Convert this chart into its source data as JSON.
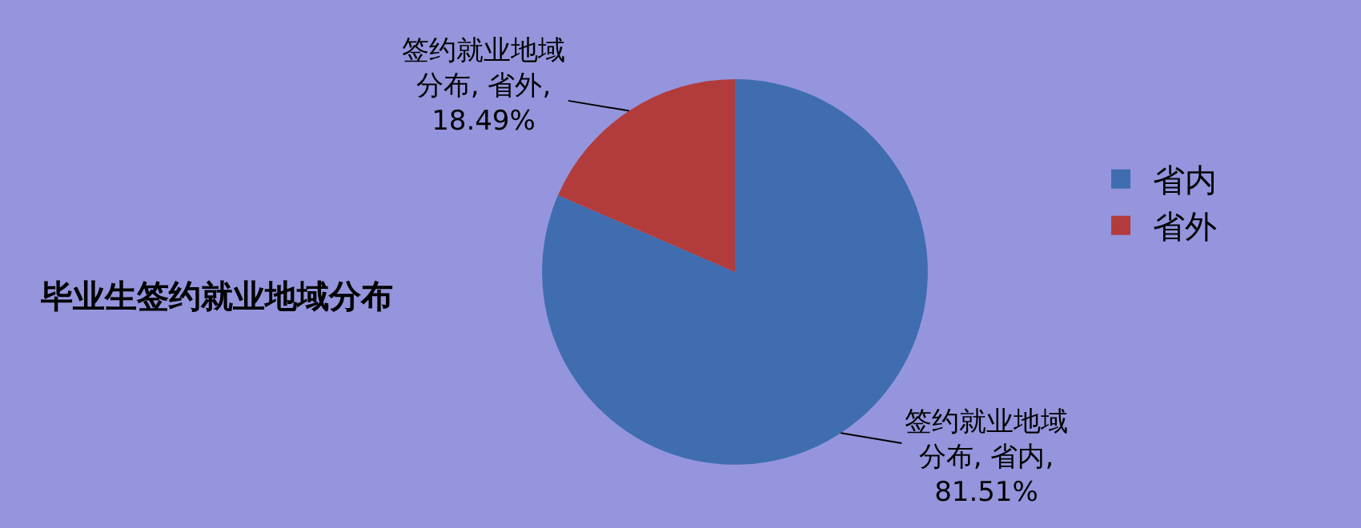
{
  "chart_data": {
    "type": "pie",
    "title": "毕业生签约就业地域分布",
    "categories": [
      "省内",
      "省外"
    ],
    "values": [
      81.51,
      18.49
    ],
    "colors": [
      "#3f6db0",
      "#b23c3b"
    ],
    "value_labels": [
      "签约就业地域分布, 省内, 81.51%",
      "签约就业地域分布, 省外, 18.49%"
    ],
    "legend": "right"
  }
}
